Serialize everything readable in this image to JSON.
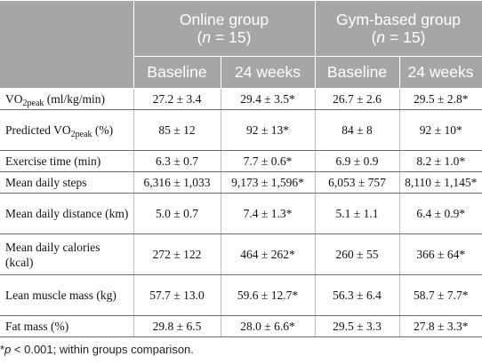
{
  "header": {
    "groups": [
      {
        "name": "Online group",
        "n_prefix": "(",
        "n_var": "n",
        "n_suffix": " = 15)"
      },
      {
        "name": "Gym-based group",
        "n_prefix": "(",
        "n_var": "n",
        "n_suffix": " = 15)"
      }
    ],
    "subheaders": [
      "Baseline",
      "24 weeks",
      "Baseline",
      "24 weeks"
    ]
  },
  "rows": [
    {
      "label_pre": "VO",
      "label_sub": "2peak",
      "label_post": " (ml/kg/min)",
      "values": [
        "27.2 ± 3.4",
        "29.4 ± 3.5*",
        "26.7 ± 2.6",
        "29.5 ± 2.8*"
      ]
    },
    {
      "label_pre": "Predicted VO",
      "label_sub": "2peak",
      "label_post": " (%)",
      "values": [
        "85 ± 12",
        "92 ± 13*",
        "84 ± 8",
        "92 ± 10*"
      ]
    },
    {
      "label_pre": "Exercise time (min)",
      "label_sub": "",
      "label_post": "",
      "values": [
        "6.3 ± 0.7",
        "7.7 ± 0.6*",
        "6.9 ± 0.9",
        "8.2 ± 1.0*"
      ]
    },
    {
      "label_pre": "Mean daily steps",
      "label_sub": "",
      "label_post": "",
      "values": [
        "6,316 ± 1,033",
        "9,173 ± 1,596*",
        "6,053 ± 757",
        "8,110 ± 1,145*"
      ]
    },
    {
      "label_pre": "Mean daily distance (km)",
      "label_sub": "",
      "label_post": "",
      "values": [
        "5.0 ± 0.7",
        "7.4 ± 1.3*",
        "5.1 ± 1.1",
        "6.4 ± 0.9*"
      ]
    },
    {
      "label_pre": "Mean daily calories (kcal)",
      "label_sub": "",
      "label_post": "",
      "values": [
        "272 ± 122",
        "464 ± 262*",
        "260 ± 55",
        "366 ± 64*"
      ]
    },
    {
      "label_pre": "Lean muscle mass (kg)",
      "label_sub": "",
      "label_post": "",
      "values": [
        "57.7 ± 13.0",
        "59.6 ± 12.7*",
        "56.3 ± 6.4",
        "58.7 ± 7.7*"
      ]
    },
    {
      "label_pre": "Fat mass (%)",
      "label_sub": "",
      "label_post": "",
      "values": [
        "29.8 ± 6.5",
        "28.0 ± 6.6*",
        "29.5 ± 3.3",
        "27.8 ± 3.3*"
      ]
    }
  ],
  "footnote": {
    "star": "*",
    "p_var": "p",
    "text": " < 0.001; within groups comparison."
  }
}
